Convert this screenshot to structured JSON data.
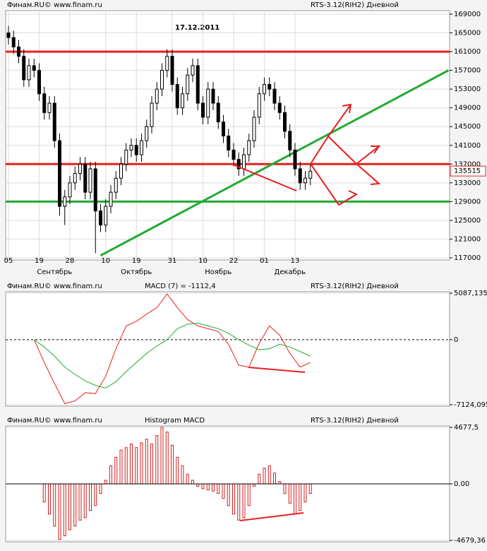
{
  "chart_data": [
    {
      "type": "candlestick",
      "source": "Финам.RU©  www.finam.ru",
      "instrument": "RTS-3.12(RIH2) Дневной",
      "title": "17.12.2011",
      "open": [
        165000,
        164000,
        162000,
        160000,
        155000,
        158000,
        157000,
        152000,
        148000,
        150000,
        142000,
        128000,
        130000,
        133000,
        135000,
        137000,
        131000,
        136000,
        127000,
        124000,
        128000,
        131000,
        134000,
        137000,
        140000,
        141000,
        139000,
        142000,
        145000,
        150000,
        153000,
        157000,
        160000,
        154000,
        149000,
        152000,
        156000,
        158000,
        150000,
        147000,
        153000,
        150000,
        146000,
        143000,
        140000,
        138000,
        136000,
        139000,
        142000,
        147000,
        152000,
        154000,
        153000,
        150000,
        148000,
        144000,
        140000,
        136000,
        133000,
        134000
      ],
      "high": [
        166500,
        165500,
        163500,
        161500,
        159500,
        159500,
        158500,
        153500,
        151500,
        151500,
        143500,
        131500,
        134500,
        136500,
        138500,
        138500,
        137500,
        137500,
        128500,
        129500,
        132500,
        135500,
        138500,
        141500,
        142500,
        142500,
        143500,
        146500,
        151500,
        154500,
        158500,
        161500,
        161500,
        155500,
        153500,
        157500,
        159500,
        159500,
        151500,
        154500,
        154500,
        151500,
        147500,
        144500,
        141500,
        139500,
        140500,
        143500,
        148500,
        153500,
        155500,
        155500,
        154500,
        151500,
        149500,
        145500,
        141500,
        137500,
        135500,
        137000
      ],
      "low": [
        162500,
        160500,
        158500,
        153500,
        153500,
        155500,
        150500,
        146500,
        146500,
        140500,
        126000,
        124000,
        128500,
        131500,
        133500,
        129500,
        129500,
        118000,
        122500,
        122500,
        126500,
        129500,
        132500,
        135500,
        138500,
        137500,
        137500,
        140500,
        143500,
        148500,
        151500,
        155500,
        152500,
        147500,
        147500,
        150500,
        154500,
        148500,
        145500,
        145500,
        148500,
        144500,
        141500,
        138500,
        136500,
        134500,
        134500,
        137500,
        140500,
        145500,
        150500,
        151500,
        148500,
        146500,
        142500,
        138500,
        134500,
        131500,
        131500,
        132500
      ],
      "close": [
        164000,
        162000,
        160000,
        155000,
        158000,
        157000,
        152000,
        148000,
        150000,
        142000,
        128000,
        130000,
        133000,
        135000,
        137000,
        131000,
        136000,
        127000,
        124000,
        128000,
        131000,
        134000,
        137000,
        140000,
        141000,
        139000,
        142000,
        145000,
        150000,
        153000,
        157000,
        160000,
        154000,
        149000,
        152000,
        156000,
        158000,
        150000,
        147000,
        153000,
        150000,
        146000,
        143000,
        140000,
        138000,
        136000,
        139000,
        142000,
        147000,
        152000,
        154000,
        153000,
        150000,
        148000,
        144000,
        140000,
        136000,
        133000,
        134000,
        135500
      ],
      "up_color": "#ffffff",
      "down_color": "#000000",
      "ylim": [
        117000,
        169000
      ],
      "yticks": [
        117000,
        121000,
        125000,
        129000,
        133000,
        137000,
        141000,
        145000,
        149000,
        153000,
        157000,
        161000,
        165000,
        169000
      ],
      "xticks": [
        {
          "value": 0,
          "label": "05"
        },
        {
          "value": 6,
          "label": "19"
        },
        {
          "value": 12,
          "label": "28"
        },
        {
          "value": 19,
          "label": "10"
        },
        {
          "value": 25,
          "label": "19"
        },
        {
          "value": 32,
          "label": "31"
        },
        {
          "value": 38,
          "label": "10"
        },
        {
          "value": 44,
          "label": "22"
        },
        {
          "value": 50,
          "label": "01"
        },
        {
          "value": 56,
          "label": "13"
        }
      ],
      "month_ticks": [
        {
          "value": 9,
          "label": "Сентябрь"
        },
        {
          "value": 25,
          "label": "Октябрь"
        },
        {
          "value": 41,
          "label": "Ноябрь"
        },
        {
          "value": 55,
          "label": "Декабрь"
        }
      ],
      "levels": [
        {
          "value": 161000,
          "color": "#e82020"
        },
        {
          "value": 137000,
          "color": "#e82020"
        },
        {
          "value": 129000,
          "color": "#22aa33"
        }
      ],
      "trend_lines": [
        {
          "color": "#22aa33",
          "x": [
            18,
            86
          ],
          "y": [
            117500,
            157000
          ]
        }
      ],
      "last_value": 135515,
      "grid": true
    },
    {
      "type": "line",
      "source": "Финам.RU©  www.finam.ru",
      "instrument": "RTS-3.12(RIH2) Дневной",
      "title": "MACD (7) = -1112,4",
      "x": [
        5,
        7,
        9,
        11,
        13,
        15,
        17,
        19,
        21,
        23,
        25,
        27,
        29,
        31,
        33,
        35,
        37,
        39,
        41,
        43,
        45,
        47,
        49,
        51,
        53,
        55,
        57,
        59
      ],
      "series": [
        {
          "color": "#e82020",
          "values": [
            0,
            -2500,
            -4800,
            -7000,
            -6700,
            -5800,
            -5900,
            -4000,
            -1000,
            1500,
            2000,
            2800,
            3500,
            5000,
            3500,
            2200,
            1500,
            1200,
            900,
            -500,
            -2800,
            -3000,
            -400,
            1500,
            500,
            -1500,
            -3000,
            -2500
          ]
        },
        {
          "color": "#22aa33",
          "values": [
            0,
            -800,
            -1800,
            -3000,
            -3800,
            -4500,
            -5000,
            -5300,
            -4600,
            -3500,
            -2500,
            -1500,
            -700,
            0,
            1200,
            1700,
            1800,
            1500,
            1200,
            700,
            0,
            -600,
            -1100,
            -1000,
            -500,
            -800,
            -1300,
            -1800
          ]
        }
      ],
      "ylim": [
        -7124.095,
        5087.135
      ],
      "yticks": [
        {
          "value": -7124.095,
          "label": "-7124,095"
        },
        0,
        {
          "value": 5087.135,
          "label": "5087,135"
        }
      ],
      "grid": true
    },
    {
      "type": "bar",
      "source": "Финам.RU©  www.finam.ru",
      "instrument": "RTS-3.12(RIH2) Дневной",
      "title": "Histogram MACD",
      "x": [
        7,
        8,
        9,
        10,
        11,
        12,
        13,
        14,
        15,
        16,
        17,
        18,
        19,
        20,
        21,
        22,
        23,
        24,
        25,
        26,
        27,
        28,
        29,
        30,
        31,
        32,
        33,
        34,
        35,
        36,
        37,
        38,
        39,
        40,
        41,
        42,
        43,
        44,
        45,
        46,
        47,
        48,
        49,
        50,
        51,
        52,
        53,
        54,
        55,
        56,
        57,
        58,
        59
      ],
      "values": [
        -1500,
        -2500,
        -3500,
        -4600,
        -4300,
        -3800,
        -3500,
        -3000,
        -2800,
        -2200,
        -1800,
        -800,
        300,
        1500,
        2200,
        2800,
        3000,
        3300,
        3000,
        3400,
        3700,
        3300,
        4000,
        4677,
        4300,
        3200,
        2200,
        1500,
        800,
        300,
        -200,
        -400,
        -500,
        -600,
        -800,
        -1200,
        -1800,
        -2500,
        -3000,
        -2800,
        -1800,
        -200,
        800,
        1300,
        1500,
        900,
        200,
        -800,
        -1600,
        -2500,
        -2200,
        -1500,
        -800
      ],
      "color": "#d02020",
      "ylim": [
        -4679.36,
        4677.5
      ],
      "yticks": [
        {
          "value": -4679.36,
          "label": "-4679,36"
        },
        {
          "value": 0,
          "label": "0.00"
        },
        {
          "value": 4677.5,
          "label": "4677,5"
        }
      ],
      "grid": true
    }
  ]
}
